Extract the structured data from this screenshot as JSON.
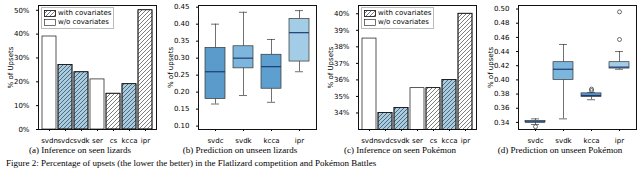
{
  "caption": "Figure 2: Percentage of upsets (the lower the better) in the Flatlizard competition and Pokémon Battles",
  "chart_data": [
    {
      "type": "bar",
      "title": "(a) Inference on seen lizards",
      "y_label": "% of Upsets",
      "categories": [
        "svdn",
        "svdc",
        "svdk",
        "ser",
        "cs",
        "kcca",
        "ipr"
      ],
      "series": [
        {
          "name": "with covariates",
          "color": "#ffffff",
          "line_style": "hatched",
          "values": [
            null,
            27,
            24,
            null,
            15,
            19,
            50
          ]
        },
        {
          "name": "w/o covariates",
          "color": "#ffffff",
          "line_style": "solid",
          "values": [
            39,
            null,
            null,
            21,
            null,
            null,
            null
          ]
        }
      ],
      "colors": [
        "#ffffff",
        "#a6cde3",
        "#a6cde3",
        "#ffffff",
        "#ffffff",
        "#a6cde3",
        "#ffffff"
      ],
      "ylim": [
        0,
        52
      ],
      "yticks": [
        {
          "value": 0,
          "label": "0%"
        },
        {
          "value": 10,
          "label": "10%"
        },
        {
          "value": 20,
          "label": "20%"
        },
        {
          "value": 30,
          "label": "30%"
        },
        {
          "value": 40,
          "label": "40%"
        },
        {
          "value": 50,
          "label": "50%"
        }
      ],
      "legend": "upper left"
    },
    {
      "type": "box",
      "title": "(b) Prediction on unseen lizards",
      "y_label": "% of upsets",
      "categories": [
        "svdc",
        "svdk",
        "kcca",
        "ipr"
      ],
      "colors": [
        "#5a9bcb",
        "#7db6dc",
        "#5d9fcf",
        "#a3cde6"
      ],
      "boxes": [
        {
          "whisker_low": 0.165,
          "q1": 0.18,
          "median": 0.26,
          "q3": 0.33,
          "whisker_high": 0.4,
          "outliers": []
        },
        {
          "whisker_low": 0.19,
          "q1": 0.27,
          "median": 0.3,
          "q3": 0.335,
          "whisker_high": 0.435,
          "outliers": []
        },
        {
          "whisker_low": 0.17,
          "q1": 0.21,
          "median": 0.275,
          "q3": 0.31,
          "whisker_high": 0.355,
          "outliers": []
        },
        {
          "whisker_low": 0.26,
          "q1": 0.29,
          "median": 0.375,
          "q3": 0.415,
          "whisker_high": 0.44,
          "outliers": []
        }
      ],
      "ylim": [
        0.09,
        0.455
      ],
      "yticks": [
        {
          "value": 0.1,
          "label": "0.10"
        },
        0.15,
        {
          "value": 0.2,
          "label": "0.20"
        },
        0.25,
        {
          "value": 0.3,
          "label": "0.30"
        },
        0.35,
        {
          "value": 0.4,
          "label": "0.40"
        },
        0.45
      ]
    },
    {
      "type": "bar",
      "title": "(c) Inference on seen Pokémon",
      "y_label": "% of Upsets",
      "categories": [
        "svdn",
        "svdc",
        "svdk",
        "ser",
        "cs",
        "kcca",
        "ipr"
      ],
      "series": [
        {
          "name": "with covariates",
          "color": "#ffffff",
          "line_style": "hatched",
          "values": [
            null,
            34,
            34.3,
            null,
            35.5,
            36,
            40
          ]
        },
        {
          "name": "w/o covariates",
          "color": "#ffffff",
          "line_style": "solid",
          "values": [
            38.5,
            null,
            null,
            35.5,
            null,
            null,
            null
          ]
        }
      ],
      "colors": [
        "#ffffff",
        "#a6cde3",
        "#a6cde3",
        "#ffffff",
        "#ffffff",
        "#a6cde3",
        "#ffffff"
      ],
      "ylim": [
        33,
        40.5
      ],
      "yticks": [
        {
          "value": 34,
          "label": "34%"
        },
        {
          "value": 35,
          "label": "35%"
        },
        {
          "value": 36,
          "label": "36%"
        },
        {
          "value": 37,
          "label": "37%"
        },
        {
          "value": 38,
          "label": "38%"
        },
        {
          "value": 39,
          "label": "39%"
        },
        {
          "value": 40,
          "label": "40%"
        }
      ],
      "legend": "upper left"
    },
    {
      "type": "box",
      "title": "(d) Prediction on unseen Pokémon",
      "y_label": "% of upsets",
      "categories": [
        "svdc",
        "svdk",
        "kcca",
        "ipr"
      ],
      "colors": [
        "#5a9bcb",
        "#7db6dc",
        "#5d9fcf",
        "#a3cde6"
      ],
      "boxes": [
        {
          "whisker_low": 0.337,
          "q1": 0.34,
          "median": 0.3405,
          "q3": 0.342,
          "whisker_high": 0.345,
          "outliers": [
            0.334
          ]
        },
        {
          "whisker_low": 0.345,
          "q1": 0.4,
          "median": 0.415,
          "q3": 0.425,
          "whisker_high": 0.45,
          "outliers": []
        },
        {
          "whisker_low": 0.372,
          "q1": 0.376,
          "median": 0.378,
          "q3": 0.381,
          "whisker_high": 0.382,
          "outliers": [
            0.385,
            0.387
          ]
        },
        {
          "whisker_low": 0.415,
          "q1": 0.416,
          "median": 0.418,
          "q3": 0.425,
          "whisker_high": 0.44,
          "outliers": [
            0.457,
            0.496
          ]
        }
      ],
      "ylim": [
        0.33,
        0.505
      ],
      "yticks": [
        0.34,
        0.36,
        0.38,
        {
          "value": 0.4,
          "label": "0.40"
        },
        0.42,
        0.44,
        0.46,
        0.48,
        {
          "value": 0.5,
          "label": "0.50"
        }
      ]
    }
  ]
}
